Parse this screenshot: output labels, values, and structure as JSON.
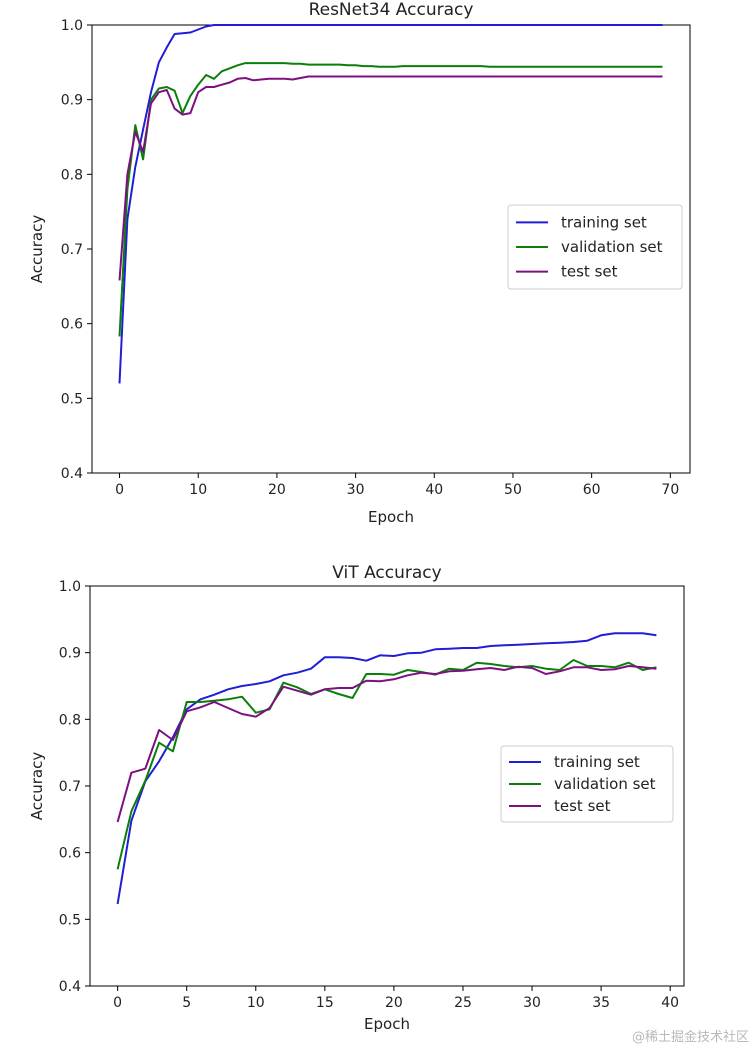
{
  "colors": {
    "training": "#1f1fd6",
    "validation": "#0a7f0a",
    "test": "#7d1080"
  },
  "watermark": "@稀土掘金技术社区",
  "chart_data": [
    {
      "type": "line",
      "title": "ResNet34 Accuracy",
      "xlabel": "Epoch",
      "ylabel": "Accuracy",
      "xlim": [
        -3.5,
        72.5
      ],
      "ylim": [
        0.4,
        1.0
      ],
      "xticks": [
        0,
        10,
        20,
        30,
        40,
        50,
        60,
        70
      ],
      "yticks": [
        0.4,
        0.5,
        0.6,
        0.7,
        0.8,
        0.9,
        1.0
      ],
      "ytick_labels": [
        "0.4",
        "0.5",
        "0.6",
        "0.7",
        "0.8",
        "0.9",
        "1.0"
      ],
      "legend_position": "center-right",
      "series": [
        {
          "name": "training set",
          "color_key": "training",
          "x": [
            0,
            1,
            2,
            3,
            4,
            5,
            6,
            7,
            8,
            9,
            10,
            11,
            12,
            13,
            14,
            15,
            69
          ],
          "y": [
            0.52,
            0.74,
            0.81,
            0.86,
            0.91,
            0.95,
            0.97,
            0.988,
            0.989,
            0.99,
            0.994,
            0.998,
            1.0,
            1.0,
            1.0,
            1.0,
            1.0
          ]
        },
        {
          "name": "validation set",
          "color_key": "validation",
          "x": [
            0,
            1,
            2,
            3,
            4,
            5,
            6,
            7,
            8,
            9,
            10,
            11,
            12,
            13,
            14,
            15,
            16,
            17,
            18,
            19,
            20,
            21,
            22,
            23,
            24,
            25,
            26,
            27,
            28,
            29,
            30,
            31,
            32,
            33,
            34,
            35,
            36,
            46,
            47,
            48,
            69
          ],
          "y": [
            0.583,
            0.78,
            0.866,
            0.82,
            0.9,
            0.915,
            0.917,
            0.912,
            0.882,
            0.905,
            0.92,
            0.933,
            0.928,
            0.938,
            0.942,
            0.946,
            0.949,
            0.949,
            0.949,
            0.949,
            0.949,
            0.949,
            0.948,
            0.948,
            0.947,
            0.947,
            0.947,
            0.947,
            0.947,
            0.946,
            0.946,
            0.945,
            0.945,
            0.944,
            0.944,
            0.944,
            0.945,
            0.945,
            0.944,
            0.944,
            0.944
          ]
        },
        {
          "name": "test set",
          "color_key": "test",
          "x": [
            0,
            1,
            2,
            3,
            4,
            5,
            6,
            7,
            8,
            9,
            10,
            11,
            12,
            13,
            14,
            15,
            16,
            17,
            18,
            19,
            20,
            21,
            22,
            23,
            24,
            25,
            69
          ],
          "y": [
            0.658,
            0.8,
            0.857,
            0.83,
            0.895,
            0.91,
            0.913,
            0.888,
            0.88,
            0.882,
            0.91,
            0.917,
            0.917,
            0.92,
            0.923,
            0.928,
            0.929,
            0.926,
            0.927,
            0.928,
            0.928,
            0.928,
            0.927,
            0.929,
            0.931,
            0.931,
            0.931
          ]
        }
      ]
    },
    {
      "type": "line",
      "title": "ViT Accuracy",
      "xlabel": "Epoch",
      "ylabel": "Accuracy",
      "xlim": [
        -2,
        41
      ],
      "ylim": [
        0.4,
        1.0
      ],
      "xticks": [
        0,
        5,
        10,
        15,
        20,
        25,
        30,
        35,
        40
      ],
      "yticks": [
        0.4,
        0.5,
        0.6,
        0.7,
        0.8,
        0.9,
        1.0
      ],
      "ytick_labels": [
        "0.4",
        "0.5",
        "0.6",
        "0.7",
        "0.8",
        "0.9",
        "1.0"
      ],
      "legend_position": "center-right",
      "series": [
        {
          "name": "training set",
          "color_key": "training",
          "x": [
            0,
            1,
            2,
            3,
            4,
            5,
            6,
            7,
            8,
            9,
            10,
            11,
            12,
            13,
            14,
            15,
            16,
            17,
            18,
            19,
            20,
            21,
            22,
            23,
            24,
            25,
            26,
            27,
            28,
            29,
            30,
            31,
            32,
            33,
            34,
            35,
            36,
            37,
            38,
            39
          ],
          "y": [
            0.523,
            0.648,
            0.707,
            0.737,
            0.773,
            0.815,
            0.83,
            0.837,
            0.845,
            0.85,
            0.853,
            0.857,
            0.866,
            0.87,
            0.876,
            0.893,
            0.893,
            0.892,
            0.888,
            0.896,
            0.895,
            0.899,
            0.9,
            0.905,
            0.906,
            0.907,
            0.907,
            0.91,
            0.911,
            0.912,
            0.913,
            0.914,
            0.915,
            0.916,
            0.918,
            0.926,
            0.929,
            0.929,
            0.929,
            0.926
          ]
        },
        {
          "name": "validation set",
          "color_key": "validation",
          "x": [
            0,
            1,
            2,
            3,
            4,
            5,
            6,
            7,
            8,
            9,
            10,
            11,
            12,
            13,
            14,
            15,
            16,
            17,
            18,
            19,
            20,
            21,
            22,
            23,
            24,
            25,
            26,
            27,
            28,
            29,
            30,
            31,
            32,
            33,
            34,
            35,
            36,
            37,
            38,
            39
          ],
          "y": [
            0.575,
            0.662,
            0.708,
            0.765,
            0.752,
            0.826,
            0.826,
            0.828,
            0.83,
            0.834,
            0.81,
            0.815,
            0.855,
            0.848,
            0.838,
            0.845,
            0.838,
            0.832,
            0.868,
            0.868,
            0.867,
            0.874,
            0.871,
            0.867,
            0.876,
            0.874,
            0.885,
            0.883,
            0.88,
            0.878,
            0.88,
            0.876,
            0.874,
            0.889,
            0.88,
            0.88,
            0.878,
            0.885,
            0.874,
            0.878
          ]
        },
        {
          "name": "test set",
          "color_key": "test",
          "x": [
            0,
            1,
            2,
            3,
            4,
            5,
            6,
            7,
            8,
            9,
            10,
            11,
            12,
            13,
            14,
            15,
            16,
            17,
            18,
            19,
            20,
            21,
            22,
            23,
            24,
            25,
            26,
            27,
            28,
            29,
            30,
            31,
            32,
            33,
            34,
            35,
            36,
            37,
            38,
            39
          ],
          "y": [
            0.646,
            0.72,
            0.726,
            0.784,
            0.769,
            0.812,
            0.818,
            0.826,
            0.817,
            0.808,
            0.804,
            0.817,
            0.849,
            0.843,
            0.837,
            0.845,
            0.847,
            0.847,
            0.858,
            0.857,
            0.86,
            0.866,
            0.87,
            0.868,
            0.872,
            0.873,
            0.875,
            0.877,
            0.874,
            0.879,
            0.877,
            0.868,
            0.872,
            0.878,
            0.878,
            0.874,
            0.875,
            0.88,
            0.878,
            0.876
          ]
        }
      ]
    }
  ]
}
